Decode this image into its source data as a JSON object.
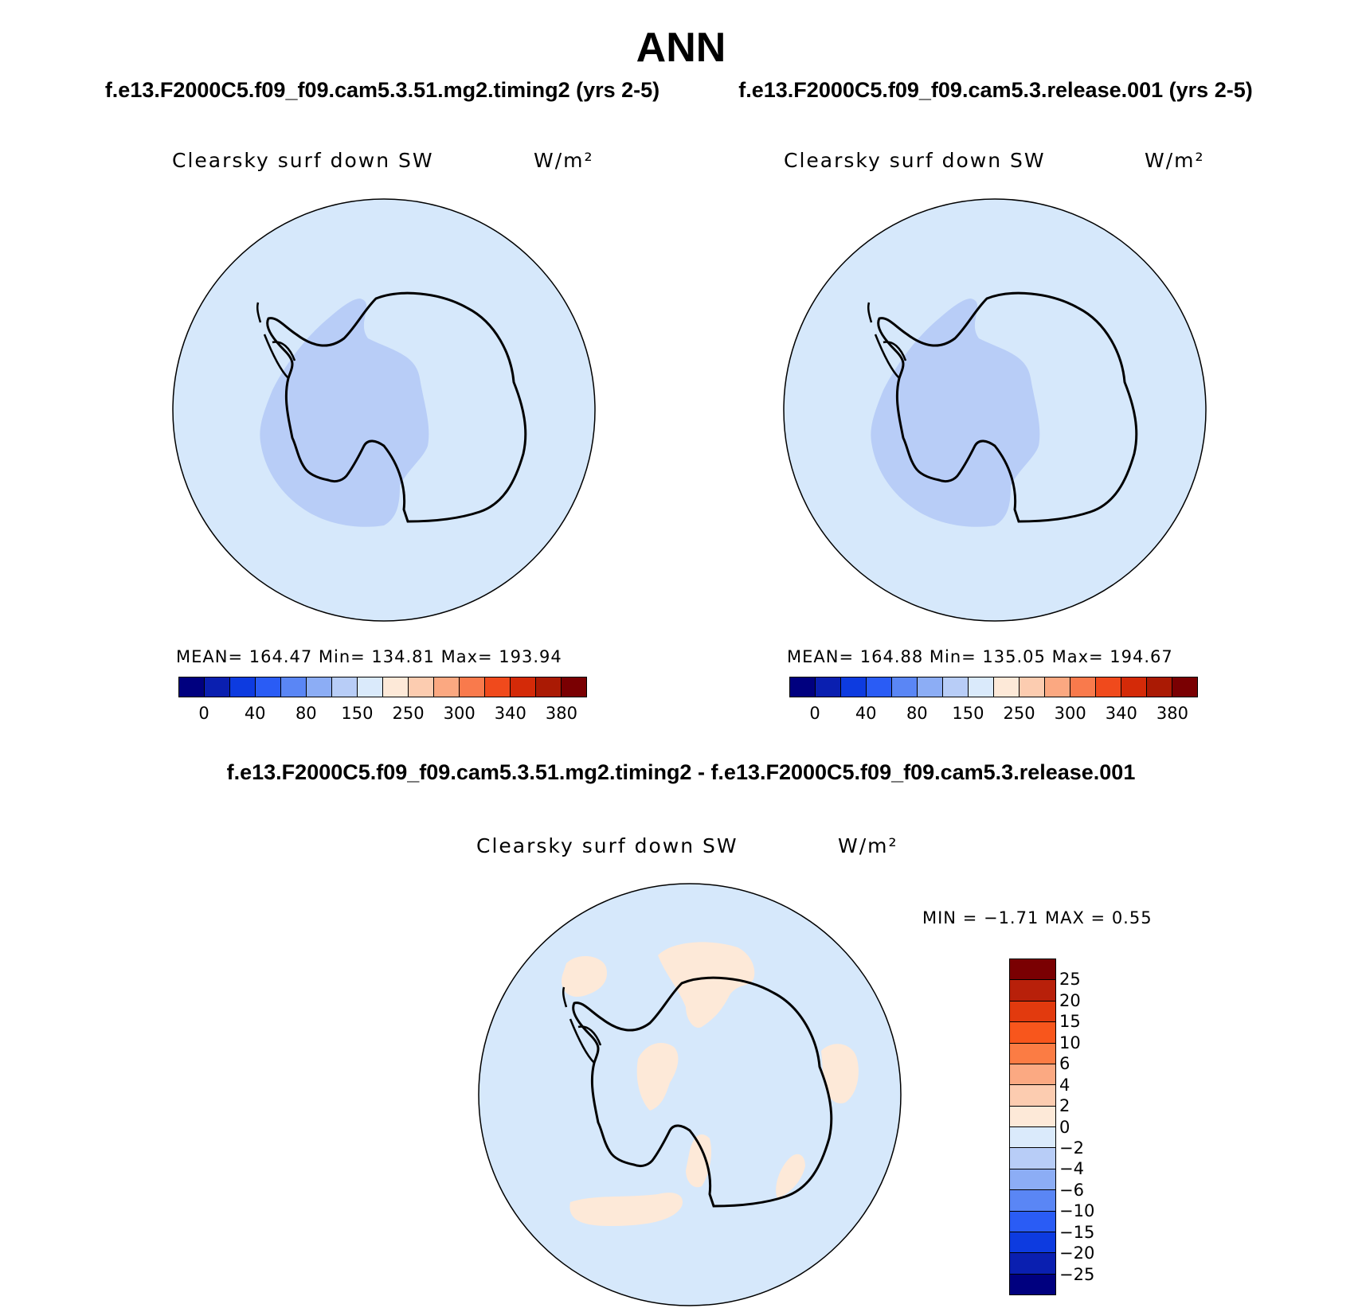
{
  "figure": {
    "title": "ANN",
    "case1_title": "f.e13.F2000C5.f09_f09.cam5.3.51.mg2.timing2 (yrs 2-5)",
    "case2_title": "f.e13.F2000C5.f09_f09.cam5.3.release.001 (yrs 2-5)",
    "diff_title": "f.e13.F2000C5.f09_f09.cam5.3.51.mg2.timing2 - f.e13.F2000C5.f09_f09.cam5.3.release.001"
  },
  "panels": [
    {
      "variable": "Clearsky surf down SW",
      "units": "W/m²",
      "stats": "MEAN= 164.47    Min= 134.81    Max= 193.94"
    },
    {
      "variable": "Clearsky surf down SW",
      "units": "W/m²",
      "stats": "MEAN= 164.88    Min= 135.05    Max= 194.67"
    },
    {
      "variable": "Clearsky surf down SW",
      "units": "W/m²",
      "stats": "MIN =   −1.71  MAX =     0.55"
    }
  ],
  "colorbar_abs": {
    "colors": [
      "#00007f",
      "#0a1fb0",
      "#0d3be0",
      "#2a5cf5",
      "#5a86f5",
      "#8cadf5",
      "#b8cdf7",
      "#daeafb",
      "#fde9d8",
      "#fcccb0",
      "#fba881",
      "#f97a4c",
      "#f04a1c",
      "#d42a08",
      "#aa1a04",
      "#7a0002"
    ],
    "tick_labels": [
      "0",
      "40",
      "80",
      "150",
      "250",
      "300",
      "340",
      "380"
    ]
  },
  "colorbar_diff": {
    "colors": [
      "#7a0002",
      "#b8200a",
      "#e23a0e",
      "#f8561c",
      "#fb7c44",
      "#fba982",
      "#fcccb0",
      "#fde9d8",
      "#daeafb",
      "#b8cdf7",
      "#8cadf5",
      "#5a86f5",
      "#2a5cf5",
      "#0d3be0",
      "#0a1fb0",
      "#00007f"
    ],
    "tick_labels": [
      "25",
      "20",
      "15",
      "10",
      "6",
      "4",
      "2",
      "0",
      "−2",
      "−4",
      "−6",
      "−10",
      "−15",
      "−20",
      "−25"
    ]
  },
  "map_colors": {
    "ocean": "#d6e8fb",
    "region_low": "#b8cdf7",
    "positive_diff": "#fde9d8"
  }
}
